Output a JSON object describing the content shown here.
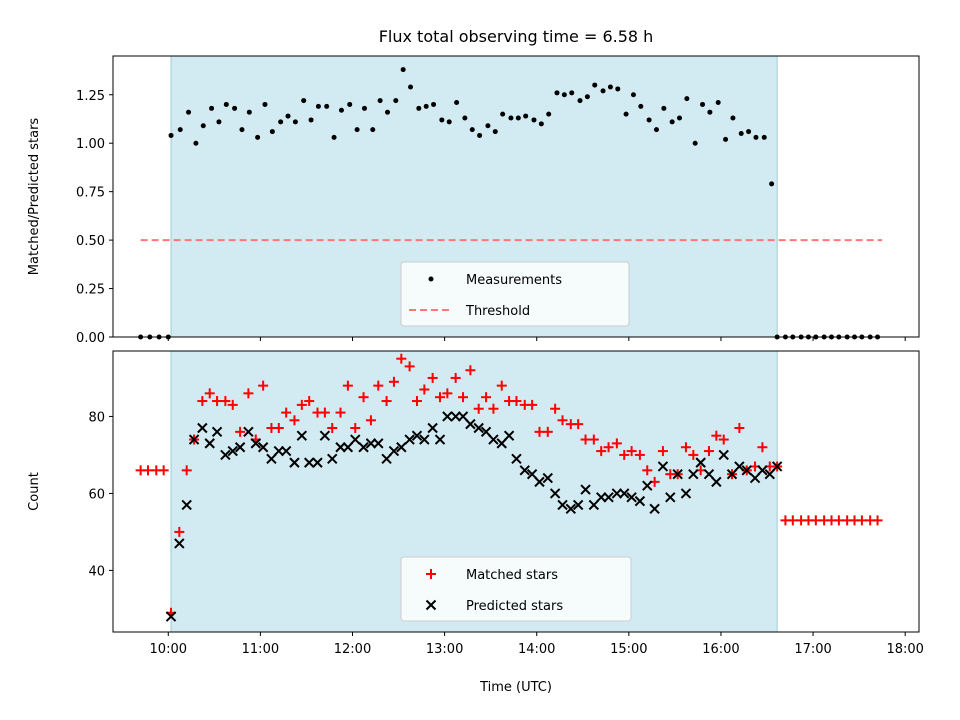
{
  "chart_data": [
    {
      "type": "scatter",
      "title": "Flux total observing time = 6.58 h",
      "xlabel": "",
      "ylabel": "Matched/Predicted stars",
      "xlim": [
        9.4,
        18.15
      ],
      "ylim": [
        0.0,
        1.45
      ],
      "yticks": [
        0.0,
        0.25,
        0.5,
        0.75,
        1.0,
        1.25
      ],
      "ytick_labels": [
        "0.00",
        "0.25",
        "0.50",
        "0.75",
        "1.00",
        "1.25"
      ],
      "shaded_interval": [
        10.03,
        16.61
      ],
      "legend": {
        "placement": "bottom-center",
        "entries": [
          "Measurements",
          "Threshold"
        ]
      },
      "series": [
        {
          "name": "Measurements",
          "color": "#000000",
          "marker": "dot",
          "x": [
            9.7,
            9.8,
            9.9,
            10.0,
            10.03,
            10.13,
            10.22,
            10.3,
            10.38,
            10.47,
            10.55,
            10.63,
            10.72,
            10.8,
            10.88,
            10.97,
            11.05,
            11.13,
            11.22,
            11.3,
            11.38,
            11.47,
            11.55,
            11.63,
            11.72,
            11.8,
            11.88,
            11.97,
            12.05,
            12.13,
            12.22,
            12.3,
            12.38,
            12.47,
            12.55,
            12.63,
            12.72,
            12.8,
            12.88,
            12.97,
            13.05,
            13.13,
            13.22,
            13.3,
            13.38,
            13.47,
            13.55,
            13.63,
            13.72,
            13.8,
            13.88,
            13.97,
            14.05,
            14.13,
            14.22,
            14.3,
            14.38,
            14.47,
            14.55,
            14.63,
            14.72,
            14.8,
            14.88,
            14.97,
            15.05,
            15.13,
            15.22,
            15.3,
            15.38,
            15.47,
            15.55,
            15.63,
            15.72,
            15.8,
            15.88,
            15.97,
            16.05,
            16.13,
            16.22,
            16.3,
            16.38,
            16.47,
            16.55,
            16.61,
            16.7,
            16.78,
            16.87,
            16.95,
            17.03,
            17.12,
            17.2,
            17.28,
            17.37,
            17.45,
            17.53,
            17.62,
            17.7
          ],
          "y": [
            0.0,
            0.0,
            0.0,
            0.0,
            1.04,
            1.07,
            1.16,
            1.0,
            1.09,
            1.18,
            1.11,
            1.2,
            1.18,
            1.07,
            1.16,
            1.03,
            1.2,
            1.06,
            1.11,
            1.14,
            1.11,
            1.22,
            1.12,
            1.19,
            1.19,
            1.03,
            1.17,
            1.2,
            1.07,
            1.18,
            1.07,
            1.22,
            1.16,
            1.22,
            1.38,
            1.29,
            1.18,
            1.19,
            1.2,
            1.12,
            1.11,
            1.21,
            1.13,
            1.07,
            1.04,
            1.09,
            1.06,
            1.15,
            1.13,
            1.13,
            1.14,
            1.12,
            1.1,
            1.15,
            1.26,
            1.25,
            1.26,
            1.22,
            1.24,
            1.3,
            1.27,
            1.29,
            1.28,
            1.15,
            1.25,
            1.19,
            1.12,
            1.07,
            1.18,
            1.11,
            1.13,
            1.23,
            1.0,
            1.2,
            1.16,
            1.21,
            1.02,
            1.13,
            1.05,
            1.06,
            1.03,
            1.03,
            0.79,
            0.0,
            0.0,
            0.0,
            0.0,
            0.0,
            0.0,
            0.0,
            0.0,
            0.0,
            0.0,
            0.0,
            0.0,
            0.0,
            0.0
          ]
        },
        {
          "name": "Threshold",
          "color": "#ff7777",
          "style": "dashed",
          "x": [
            9.7,
            17.75
          ],
          "y": [
            0.5,
            0.5
          ]
        }
      ]
    },
    {
      "type": "scatter",
      "title": "",
      "xlabel": "Time (UTC)",
      "ylabel": "Count",
      "xlim": [
        9.4,
        18.15
      ],
      "ylim": [
        24,
        97
      ],
      "yticks": [
        40,
        60,
        80
      ],
      "ytick_labels": [
        "40",
        "60",
        "80"
      ],
      "xticks": [
        10,
        11,
        12,
        13,
        14,
        15,
        16,
        17,
        18
      ],
      "xtick_labels": [
        "10:00",
        "11:00",
        "12:00",
        "13:00",
        "14:00",
        "15:00",
        "16:00",
        "17:00",
        "18:00"
      ],
      "shaded_interval": [
        10.03,
        16.61
      ],
      "legend": {
        "placement": "bottom-center",
        "entries": [
          "Matched stars",
          "Predicted stars"
        ]
      },
      "series": [
        {
          "name": "Matched stars",
          "color": "#ff0000",
          "marker": "plus",
          "x": [
            9.7,
            9.78,
            9.87,
            9.95,
            10.03,
            10.12,
            10.2,
            10.28,
            10.37,
            10.45,
            10.53,
            10.62,
            10.7,
            10.78,
            10.87,
            10.95,
            11.03,
            11.12,
            11.2,
            11.28,
            11.37,
            11.45,
            11.53,
            11.62,
            11.7,
            11.78,
            11.87,
            11.95,
            12.03,
            12.12,
            12.2,
            12.28,
            12.37,
            12.45,
            12.53,
            12.62,
            12.7,
            12.78,
            12.87,
            12.95,
            13.03,
            13.12,
            13.2,
            13.28,
            13.37,
            13.45,
            13.53,
            13.62,
            13.7,
            13.78,
            13.87,
            13.95,
            14.03,
            14.12,
            14.2,
            14.28,
            14.37,
            14.45,
            14.53,
            14.62,
            14.7,
            14.78,
            14.87,
            14.95,
            15.03,
            15.12,
            15.2,
            15.28,
            15.37,
            15.45,
            15.53,
            15.62,
            15.7,
            15.78,
            15.87,
            15.95,
            16.03,
            16.12,
            16.2,
            16.28,
            16.37,
            16.45,
            16.53,
            16.61,
            16.7,
            16.78,
            16.87,
            16.95,
            17.03,
            17.12,
            17.2,
            17.28,
            17.37,
            17.45,
            17.53,
            17.62,
            17.7
          ],
          "y": [
            66,
            66,
            66,
            66,
            29,
            50,
            66,
            74,
            84,
            86,
            84,
            84,
            83,
            76,
            86,
            74,
            88,
            77,
            77,
            81,
            79,
            83,
            84,
            81,
            81,
            77,
            81,
            88,
            77,
            85,
            79,
            88,
            84,
            89,
            95,
            93,
            84,
            87,
            90,
            85,
            86,
            90,
            85,
            92,
            82,
            85,
            82,
            88,
            84,
            84,
            83,
            83,
            76,
            76,
            82,
            79,
            78,
            78,
            74,
            74,
            71,
            72,
            73,
            70,
            71,
            70,
            66,
            63,
            71,
            65,
            65,
            72,
            70,
            66,
            71,
            75,
            74,
            65,
            77,
            66,
            67,
            72,
            67,
            67,
            53,
            53,
            53,
            53,
            53,
            53,
            53,
            53,
            53,
            53,
            53,
            53,
            53
          ]
        },
        {
          "name": "Predicted stars",
          "color": "#000000",
          "marker": "x",
          "x": [
            10.03,
            10.12,
            10.2,
            10.28,
            10.37,
            10.45,
            10.53,
            10.62,
            10.7,
            10.78,
            10.87,
            10.95,
            11.03,
            11.12,
            11.2,
            11.28,
            11.37,
            11.45,
            11.53,
            11.62,
            11.7,
            11.78,
            11.87,
            11.95,
            12.03,
            12.12,
            12.2,
            12.28,
            12.37,
            12.45,
            12.53,
            12.62,
            12.7,
            12.78,
            12.87,
            12.95,
            13.03,
            13.12,
            13.2,
            13.28,
            13.37,
            13.45,
            13.53,
            13.62,
            13.7,
            13.78,
            13.87,
            13.95,
            14.03,
            14.12,
            14.2,
            14.28,
            14.37,
            14.45,
            14.53,
            14.62,
            14.7,
            14.78,
            14.87,
            14.95,
            15.03,
            15.12,
            15.2,
            15.28,
            15.37,
            15.45,
            15.53,
            15.62,
            15.7,
            15.78,
            15.87,
            15.95,
            16.03,
            16.12,
            16.2,
            16.28,
            16.37,
            16.45,
            16.53,
            16.61
          ],
          "y": [
            28,
            47,
            57,
            74,
            77,
            73,
            76,
            70,
            71,
            72,
            76,
            73,
            72,
            69,
            71,
            71,
            68,
            75,
            68,
            68,
            75,
            69,
            72,
            72,
            74,
            72,
            73,
            73,
            69,
            71,
            72,
            74,
            75,
            74,
            77,
            74,
            80,
            80,
            80,
            78,
            77,
            76,
            74,
            73,
            75,
            69,
            66,
            65,
            63,
            64,
            60,
            57,
            56,
            57,
            61,
            57,
            59,
            59,
            60,
            60,
            59,
            58,
            62,
            56,
            67,
            59,
            65,
            60,
            65,
            68,
            65,
            63,
            70,
            65,
            67,
            66,
            64,
            66,
            65,
            67
          ]
        }
      ]
    }
  ]
}
